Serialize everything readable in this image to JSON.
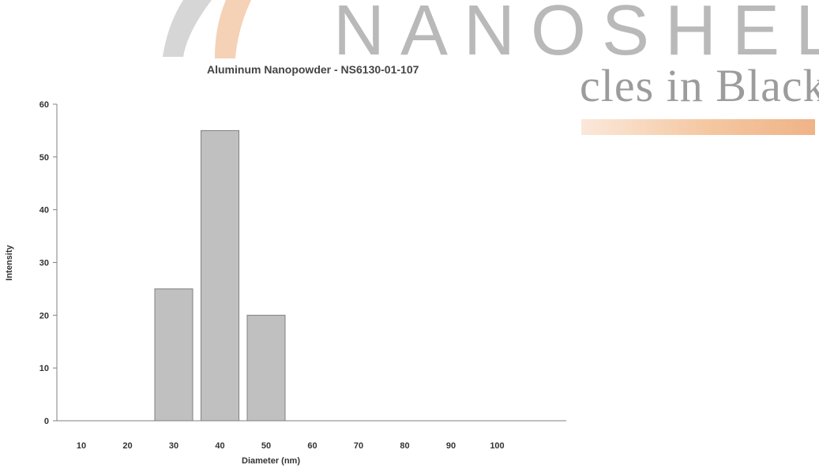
{
  "watermark": {
    "brand_name": "NANOSHEL",
    "tagline": "cles in Black",
    "colors": {
      "logo_gray": "#bdbdbd",
      "logo_orange": "#f2b98e",
      "text_gray": "#b9b9b9"
    }
  },
  "chart_data": {
    "type": "bar",
    "title": "Aluminum Nanopowder - NS6130-01-107",
    "xlabel": "Diameter (nm)",
    "ylabel": "Intensity",
    "categories": [
      "10",
      "20",
      "30",
      "40",
      "50",
      "60",
      "70",
      "80",
      "90",
      "100"
    ],
    "values": [
      0,
      0,
      25,
      55,
      20,
      0,
      0,
      0,
      0,
      0
    ],
    "ylim": [
      0,
      60
    ],
    "yticks": [
      0,
      10,
      20,
      30,
      40,
      50,
      60
    ],
    "grid": false,
    "legend": "none",
    "bar_color": "#c0c0c0",
    "bar_edge_color": "#7f7f7f"
  }
}
